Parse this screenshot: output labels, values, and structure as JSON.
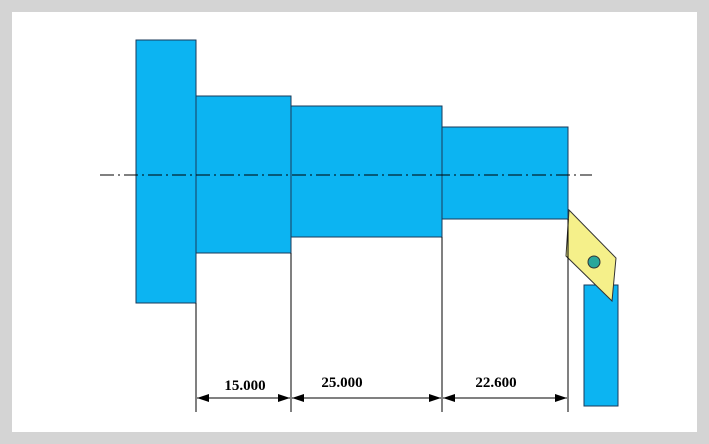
{
  "dimensions": [
    {
      "label": "15.000"
    },
    {
      "label": "25.000"
    },
    {
      "label": "22.600"
    }
  ]
}
